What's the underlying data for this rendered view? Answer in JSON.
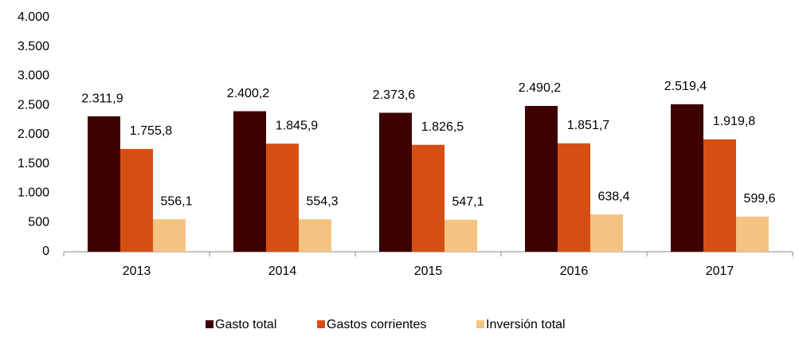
{
  "chart_data": {
    "type": "bar",
    "categories": [
      "2013",
      "2014",
      "2015",
      "2016",
      "2017"
    ],
    "series": [
      {
        "name": "Gasto total",
        "color": "#3f0000",
        "values": [
          2311.9,
          2400.2,
          2373.6,
          2490.2,
          2519.4
        ],
        "value_labels": [
          "2.311,9",
          "2.400,2",
          "2.373,6",
          "2.490,2",
          "2.519,4"
        ]
      },
      {
        "name": "Gastos corrientes",
        "color": "#d64f12",
        "values": [
          1755.8,
          1845.9,
          1826.5,
          1851.7,
          1919.8
        ],
        "value_labels": [
          "1.755,8",
          "1.845,9",
          "1.826,5",
          "1.851,7",
          "1.919,8"
        ]
      },
      {
        "name": "Inversión total",
        "color": "#f5c381",
        "values": [
          556.1,
          554.3,
          547.1,
          638.4,
          599.6
        ],
        "value_labels": [
          "556,1",
          "554,3",
          "547,1",
          "638,4",
          "599,6"
        ]
      }
    ],
    "ylim": [
      0,
      4000
    ],
    "yticks": [
      0,
      500,
      {
        "value": 1000,
        "label": "1.000"
      },
      {
        "value": 1500,
        "label": "1.500"
      },
      {
        "value": 2000,
        "label": "2.000"
      },
      {
        "value": 2500,
        "label": "2.500"
      },
      {
        "value": 3000,
        "label": "3.000"
      },
      {
        "value": 3500,
        "label": "3.500"
      },
      {
        "value": 4000,
        "label": "4.000"
      }
    ],
    "legend": "bottom"
  }
}
